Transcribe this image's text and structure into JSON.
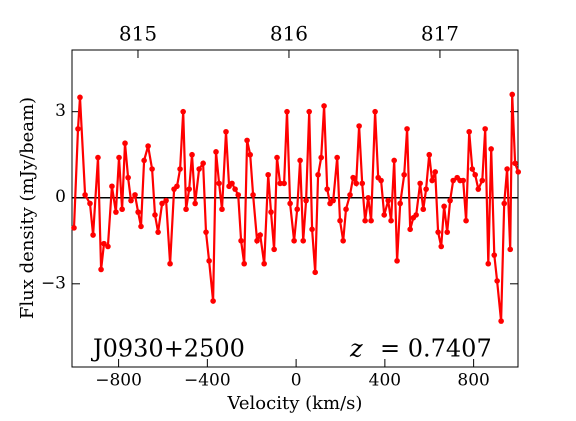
{
  "chart_data": {
    "type": "line",
    "xlabel": "Velocity (km/s)",
    "ylabel": "Flux density (mJy/beam)",
    "annotations": [
      "J0930+2500",
      "z",
      "= 0.7407"
    ],
    "xlim": [
      -1010,
      1000
    ],
    "ylim": [
      -5.9,
      5.15
    ],
    "x2lim": [
      814.563,
      817.517
    ],
    "xticks": [
      {
        "value": -800,
        "label": "−800"
      },
      {
        "value": -400,
        "label": "−400"
      },
      0,
      400,
      800
    ],
    "yticks": [
      3,
      0,
      {
        "value": -3,
        "label": "−3"
      }
    ],
    "x2ticks": [
      815,
      816,
      817
    ],
    "hline": 0,
    "series": [
      {
        "color": "#ff0000",
        "x": [
          -1001,
          -983,
          -974,
          -951,
          -929,
          -915,
          -893,
          -879,
          -866,
          -848,
          -830,
          -812,
          -798,
          -784,
          -771,
          -757,
          -744,
          -726,
          -712,
          -699,
          -685,
          -667,
          -649,
          -636,
          -622,
          -604,
          -586,
          -568,
          -550,
          -537,
          -523,
          -509,
          -496,
          -482,
          -469,
          -455,
          -437,
          -419,
          -406,
          -392,
          -374,
          -361,
          -347,
          -334,
          -316,
          -302,
          -289,
          -275,
          -261,
          -248,
          -234,
          -221,
          -207,
          -194,
          -176,
          -162,
          -144,
          -126,
          -113,
          -99,
          -86,
          -72,
          -54,
          -41,
          -27,
          -9,
          5,
          18,
          32,
          45,
          59,
          72,
          86,
          99,
          113,
          126,
          140,
          153,
          167,
          185,
          198,
          212,
          225,
          243,
          257,
          271,
          284,
          298,
          311,
          325,
          338,
          356,
          370,
          383,
          397,
          415,
          428,
          442,
          455,
          469,
          487,
          500,
          514,
          528,
          541,
          559,
          573,
          586,
          600,
          613,
          627,
          640,
          654,
          667,
          681,
          694,
          708,
          726,
          739,
          753,
          766,
          780,
          794,
          807,
          821,
          839,
          852,
          866,
          879,
          893,
          906,
          924,
          938,
          951,
          965,
          974,
          987,
          1001
        ],
        "values": [
          -1.05,
          2.4,
          3.5,
          0.1,
          -0.2,
          -1.3,
          1.4,
          -2.5,
          -1.6,
          -1.7,
          0.4,
          -0.5,
          1.4,
          -0.4,
          1.9,
          0.7,
          -0.1,
          0.1,
          -0.5,
          -1.0,
          1.3,
          1.8,
          1.0,
          -0.6,
          -1.2,
          -0.2,
          -0.1,
          -2.3,
          0.3,
          0.4,
          1.0,
          3.0,
          -0.4,
          0.3,
          1.5,
          -0.2,
          1.0,
          1.2,
          -1.2,
          -2.2,
          -3.6,
          1.6,
          0.5,
          -0.4,
          2.3,
          0.4,
          0.5,
          0.3,
          0.1,
          -1.5,
          -2.3,
          2.0,
          1.5,
          0.1,
          -1.5,
          -1.3,
          -2.3,
          0.8,
          -0.5,
          -1.8,
          1.4,
          0.5,
          0.5,
          3.0,
          -0.2,
          -1.5,
          -0.4,
          1.3,
          -1.5,
          -0.1,
          3.0,
          -1.1,
          -2.6,
          0.8,
          1.4,
          3.2,
          0.3,
          -0.2,
          -0.1,
          1.4,
          -0.8,
          -1.5,
          -0.4,
          0.1,
          0.7,
          0.5,
          2.5,
          0.5,
          -0.8,
          0.0,
          -0.8,
          3.0,
          0.7,
          0.6,
          -0.6,
          -0.1,
          -0.8,
          1.3,
          -2.2,
          -0.2,
          0.8,
          2.4,
          -1.1,
          -0.7,
          -0.6,
          0.5,
          -0.4,
          0.3,
          1.5,
          0.6,
          0.9,
          -1.2,
          -1.7,
          -0.3,
          -1.2,
          -0.1,
          0.6,
          0.7,
          0.6,
          0.6,
          -0.8,
          2.3,
          1.0,
          0.8,
          0.3,
          0.6,
          2.4,
          -2.3,
          1.7,
          -2.0,
          -2.9,
          -4.3,
          -0.2,
          1.0,
          -1.8,
          3.6,
          1.2,
          0.9
        ]
      }
    ]
  }
}
